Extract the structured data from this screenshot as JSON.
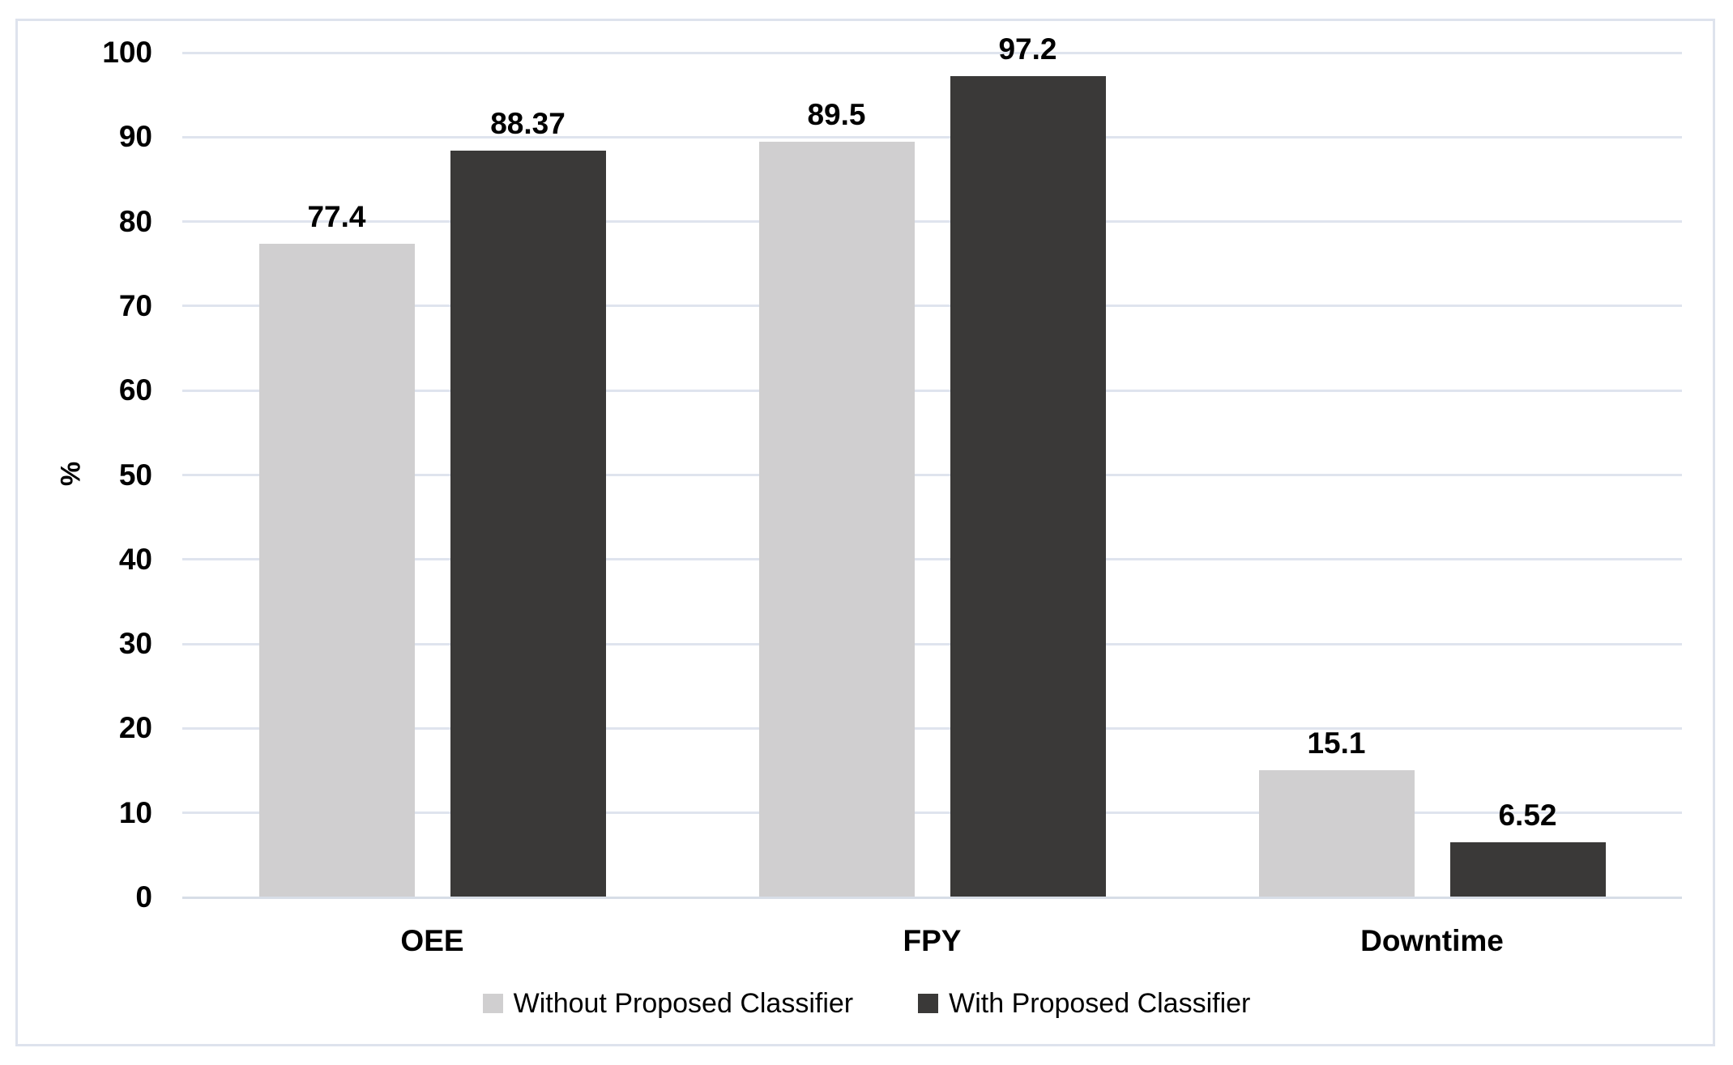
{
  "chart_data": {
    "type": "bar",
    "title": "",
    "categories": [
      "OEE",
      "FPY",
      "Downtime"
    ],
    "series": [
      {
        "name": "Without Proposed Classifier",
        "color": "#d0cfd0",
        "values": [
          77.4,
          89.5,
          15.1
        ]
      },
      {
        "name": "With Proposed Classifier",
        "color": "#3a3938",
        "values": [
          88.37,
          97.2,
          6.52
        ]
      }
    ],
    "xlabel": "",
    "ylabel": "%",
    "ylim": [
      0,
      100
    ],
    "yticks": [
      0,
      10,
      20,
      30,
      40,
      50,
      60,
      70,
      80,
      90,
      100
    ],
    "grid": "on",
    "legend_position": "bottom",
    "colors": {
      "gridline": "#dfe4ee",
      "axis_line": "#d7dde7",
      "frame_border": "#dee3ed",
      "background": "#ffffff",
      "text": "#000000"
    }
  }
}
